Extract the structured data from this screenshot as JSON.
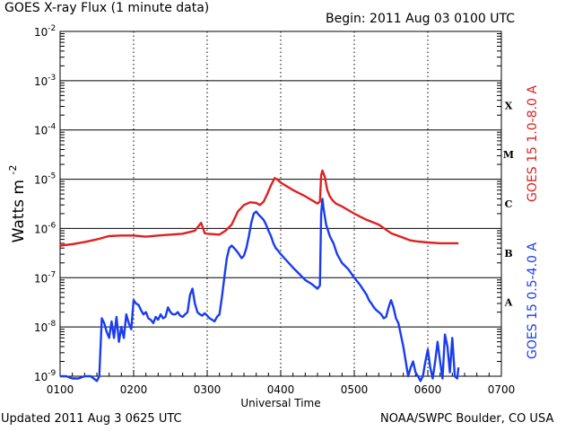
{
  "header": {
    "title": "GOES X-ray Flux (1 minute data)",
    "begin": "Begin: 2011 Aug 03 0100 UTC"
  },
  "footer": {
    "updated": "Updated 2011 Aug  3 0625 UTC",
    "source": "NOAA/SWPC Boulder, CO USA"
  },
  "chart_data": {
    "type": "line",
    "title": "GOES X-ray Flux (1 minute data)",
    "xlabel": "Universal Time",
    "ylabel": "Watts m",
    "ylabel_sup": "-2",
    "y_scale": "log",
    "ylim": [
      1e-09,
      0.01
    ],
    "x_time_range": [
      "0100",
      "0700"
    ],
    "x_ticks": [
      "0100",
      "0200",
      "0300",
      "0400",
      "0500",
      "0600",
      "0700"
    ],
    "y_tick_exponents": [
      "-9",
      "-8",
      "-7",
      "-6",
      "-5",
      "-4",
      "-3",
      "-2"
    ],
    "flare_classes": [
      "A",
      "B",
      "C",
      "M",
      "X"
    ],
    "grid": true,
    "series": [
      {
        "name": "GOES 15 1.0-8.0 A",
        "color": "#e02020",
        "x": [
          "0100",
          "0110",
          "0120",
          "0130",
          "0140",
          "0150",
          "0200",
          "0210",
          "0220",
          "0230",
          "0240",
          "0250",
          "0255",
          "0258",
          "0300",
          "0310",
          "0315",
          "0320",
          "0325",
          "0330",
          "0335",
          "0340",
          "0343",
          "0346",
          "0349",
          "0352",
          "0355",
          "0357",
          "0400",
          "0410",
          "0420",
          "0430",
          "0432",
          "0433",
          "0434",
          "0436",
          "0438",
          "0440",
          "0442",
          "0445",
          "0450",
          "0500",
          "0510",
          "0520",
          "0530",
          "0540",
          "0545",
          "0550",
          "0600",
          "0610",
          "0620",
          "0625"
        ],
        "values": [
          4.5e-07,
          4.8e-07,
          5.3e-07,
          6e-07,
          7e-07,
          7.2e-07,
          7.2e-07,
          6.8e-07,
          7.2e-07,
          7.5e-07,
          7.8e-07,
          9e-07,
          1.3e-06,
          8e-07,
          7.8e-07,
          7.5e-07,
          9e-07,
          1.2e-06,
          2.2e-06,
          3e-06,
          3.4e-06,
          3.3e-06,
          3e-06,
          3.5e-06,
          5e-06,
          7.5e-06,
          1.05e-05,
          1e-05,
          8.5e-06,
          6e-06,
          4.5e-06,
          3.2e-06,
          3.5e-06,
          1.2e-05,
          1.5e-05,
          1.1e-05,
          6e-06,
          4.5e-06,
          3.8e-06,
          3.2e-06,
          2.8e-06,
          2e-06,
          1.5e-06,
          1.2e-06,
          8e-07,
          6.5e-07,
          5.8e-07,
          5.5e-07,
          5.2e-07,
          5e-07,
          5e-07,
          5e-07
        ]
      },
      {
        "name": "GOES 15 0.5-4.0 A",
        "color": "#1a3cf0",
        "x": [
          "0100",
          "0105",
          "0110",
          "0115",
          "0120",
          "0125",
          "0130",
          "0132",
          "0134",
          "0136",
          "0138",
          "0140",
          "0142",
          "0144",
          "0146",
          "0148",
          "0150",
          "0152",
          "0154",
          "0156",
          "0158",
          "0200",
          "0202",
          "0204",
          "0206",
          "0208",
          "0210",
          "0212",
          "0214",
          "0216",
          "0218",
          "0220",
          "0222",
          "0224",
          "0226",
          "0228",
          "0230",
          "0232",
          "0234",
          "0236",
          "0238",
          "0240",
          "0242",
          "0244",
          "0246",
          "0248",
          "0250",
          "0252",
          "0254",
          "0256",
          "0258",
          "0300",
          "0302",
          "0304",
          "0306",
          "0308",
          "0310",
          "0312",
          "0314",
          "0316",
          "0318",
          "0320",
          "0322",
          "0324",
          "0326",
          "0328",
          "0330",
          "0332",
          "0334",
          "0336",
          "0338",
          "0340",
          "0342",
          "0344",
          "0346",
          "0348",
          "0350",
          "0352",
          "0354",
          "0356",
          "0358",
          "0400",
          "0405",
          "0410",
          "0415",
          "0420",
          "0425",
          "0430",
          "0432",
          "0433",
          "0434",
          "0435",
          "0437",
          "0440",
          "0443",
          "0446",
          "0450",
          "0455",
          "0500",
          "0505",
          "0510",
          "0512",
          "0514",
          "0516",
          "0518",
          "0520",
          "0522",
          "0524",
          "0526",
          "0528",
          "0530",
          "0532",
          "0534",
          "0536",
          "0538",
          "0540",
          "0542",
          "0544",
          "0546",
          "0548",
          "0550",
          "0552",
          "0554",
          "0556",
          "0558",
          "0600",
          "0602",
          "0604",
          "0606",
          "0608",
          "0610",
          "0612",
          "0614",
          "0616",
          "0618",
          "0620",
          "0622",
          "0624",
          "0625"
        ],
        "values": [
          1e-09,
          1e-09,
          9e-10,
          9e-10,
          1e-09,
          1e-09,
          8e-10,
          1e-09,
          1.5e-08,
          1.2e-08,
          8e-09,
          6e-09,
          1.3e-08,
          6e-09,
          1.6e-08,
          5e-09,
          1e-08,
          6e-09,
          1.8e-08,
          1.2e-08,
          9e-09,
          3.5e-08,
          3e-08,
          2.8e-08,
          2.2e-08,
          1.8e-08,
          2e-08,
          1.5e-08,
          1.4e-08,
          1.2e-08,
          1.6e-08,
          1.4e-08,
          1.8e-08,
          1.5e-08,
          1.6e-08,
          2.5e-08,
          2e-08,
          1.8e-08,
          1.8e-08,
          2e-08,
          1.7e-08,
          1.6e-08,
          1.8e-08,
          2e-08,
          4.5e-08,
          6e-08,
          3e-08,
          2e-08,
          1.8e-08,
          1.7e-08,
          1.9e-08,
          1.7e-08,
          1.5e-08,
          1.4e-08,
          1.3e-08,
          1.6e-08,
          1.8e-08,
          4e-08,
          1e-07,
          2.5e-07,
          4e-07,
          4.5e-07,
          4e-07,
          3.5e-07,
          3e-07,
          2.5e-07,
          2.8e-07,
          4e-07,
          7e-07,
          1.3e-06,
          2e-06,
          2.2e-06,
          1.9e-06,
          1.7e-06,
          1.5e-06,
          1.2e-06,
          9e-07,
          7e-07,
          5e-07,
          4e-07,
          3.5e-07,
          3e-07,
          2.2e-07,
          1.6e-07,
          1.2e-07,
          9e-08,
          7.5e-08,
          6e-08,
          7e-08,
          2e-06,
          4e-06,
          2.5e-06,
          1.2e-06,
          7e-07,
          5e-07,
          3e-07,
          2e-07,
          1.5e-07,
          1e-07,
          7e-08,
          4.5e-08,
          3.5e-08,
          3e-08,
          2.5e-08,
          2.2e-08,
          2e-08,
          1.8e-08,
          1.5e-08,
          1.6e-08,
          2.5e-08,
          3.5e-08,
          2.5e-08,
          1.5e-08,
          1.2e-08,
          7e-09,
          4e-09,
          2e-09,
          1e-09,
          1.5e-09,
          2e-09,
          1.2e-09,
          1e-09,
          8e-10,
          1e-09,
          2e-09,
          3.5e-09,
          1.5e-09,
          9e-10,
          2e-09,
          5e-09,
          2e-09,
          9e-10,
          7e-09,
          4e-09,
          1.2e-09,
          6e-09,
          1e-09,
          9e-10,
          1.5e-09
        ]
      }
    ]
  }
}
